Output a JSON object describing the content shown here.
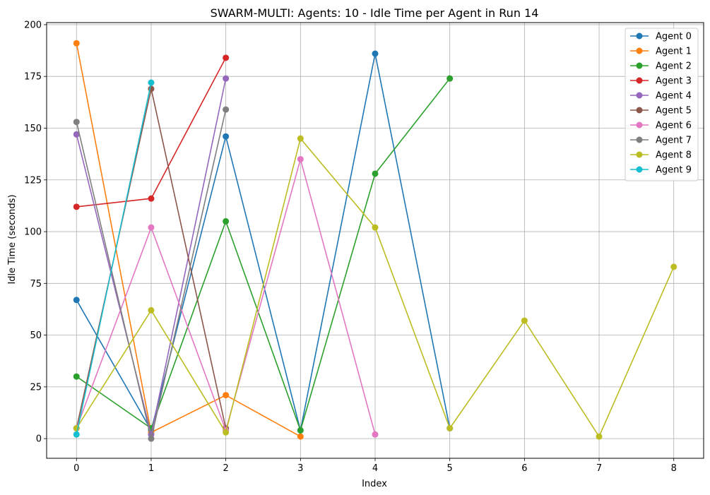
{
  "chart_data": {
    "type": "line",
    "title": "SWARM-MULTI: Agents: 10 - Idle Time per Agent in Run 14",
    "xlabel": "Index",
    "ylabel": "Idle Time (seconds)",
    "xlim": [
      -0.4,
      8.4
    ],
    "ylim": [
      -9.5,
      201
    ],
    "xticks": [
      0,
      1,
      2,
      3,
      4,
      5,
      6,
      7,
      8
    ],
    "yticks": [
      0,
      25,
      50,
      75,
      100,
      125,
      150,
      175,
      200
    ],
    "grid": true,
    "legend_position": "top-right",
    "series": [
      {
        "name": "Agent 0",
        "color": "#1f77b4",
        "x": [
          0,
          1,
          2,
          3,
          4,
          5
        ],
        "y": [
          67,
          4,
          146,
          4,
          186,
          5
        ]
      },
      {
        "name": "Agent 1",
        "color": "#ff7f0e",
        "x": [
          0,
          1,
          2,
          3
        ],
        "y": [
          191,
          3,
          21,
          1
        ]
      },
      {
        "name": "Agent 2",
        "color": "#2ca02c",
        "x": [
          0,
          1,
          2,
          3,
          4,
          5
        ],
        "y": [
          30,
          5,
          105,
          4,
          128,
          174
        ]
      },
      {
        "name": "Agent 3",
        "color": "#d62728",
        "x": [
          0,
          1,
          2
        ],
        "y": [
          112,
          116,
          184
        ]
      },
      {
        "name": "Agent 4",
        "color": "#9467bd",
        "x": [
          0,
          1,
          2
        ],
        "y": [
          147,
          2,
          174
        ]
      },
      {
        "name": "Agent 5",
        "color": "#8c564b",
        "x": [
          0,
          1,
          2
        ],
        "y": [
          5,
          169,
          5
        ]
      },
      {
        "name": "Agent 6",
        "color": "#e377c2",
        "x": [
          0,
          1,
          2,
          3,
          4
        ],
        "y": [
          5,
          102,
          4,
          135,
          2
        ]
      },
      {
        "name": "Agent 7",
        "color": "#7f7f7f",
        "x": [
          0,
          1,
          2
        ],
        "y": [
          153,
          0,
          159
        ]
      },
      {
        "name": "Agent 8",
        "color": "#bcbd22",
        "x": [
          0,
          1,
          2,
          3,
          4,
          5,
          6,
          7,
          8
        ],
        "y": [
          5,
          62,
          3,
          145,
          102,
          5,
          57,
          1,
          83
        ]
      },
      {
        "name": "Agent 9",
        "color": "#17becf",
        "x": [
          0,
          1
        ],
        "y": [
          2,
          172
        ]
      }
    ]
  }
}
